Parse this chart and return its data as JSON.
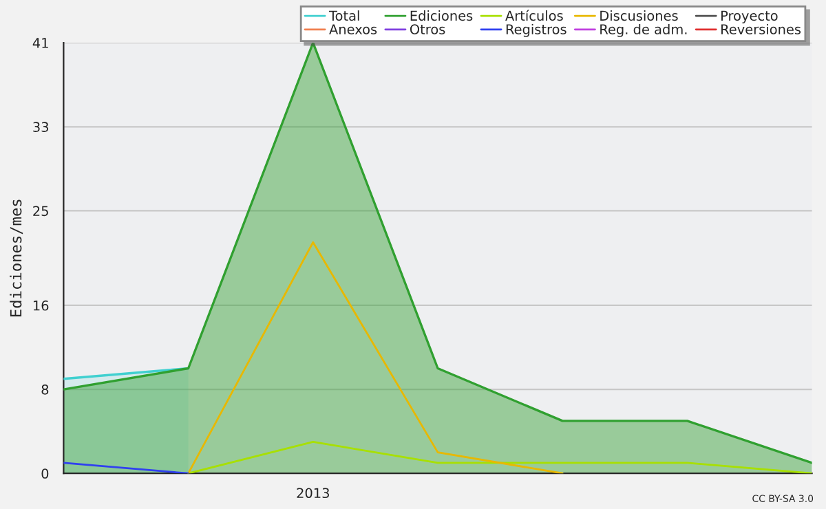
{
  "chart_data": {
    "type": "area",
    "ylabel": "Ediciones/mes",
    "categories": [
      null,
      null,
      "2013",
      null,
      null,
      null,
      null
    ],
    "ylim": [
      0,
      41
    ],
    "yticks": [
      0,
      8,
      16,
      25,
      33,
      41
    ],
    "grid": "y",
    "legend": "top right",
    "annotations": [
      {
        "text": "CC BY-SA 3.0"
      }
    ],
    "series": [
      {
        "name": "Total",
        "color": "#40d0d0",
        "values": [
          9,
          10,
          null,
          null,
          null,
          null,
          null
        ]
      },
      {
        "name": "Ediciones",
        "color": "#30a030",
        "values": [
          8,
          10,
          41,
          10,
          5,
          5,
          1
        ]
      },
      {
        "name": "Artículos",
        "type": "line",
        "color": "#a8e000",
        "values": [
          null,
          0,
          3,
          1,
          1,
          1,
          0
        ]
      },
      {
        "name": "Discusiones",
        "type": "line",
        "color": "#e8b800",
        "values": [
          null,
          0,
          22,
          2,
          0,
          null,
          null
        ]
      },
      {
        "name": "Proyecto",
        "type": "line",
        "color": "#505050",
        "values": [
          null,
          null,
          null,
          null,
          null,
          null,
          null
        ]
      },
      {
        "name": "Anexos",
        "type": "line",
        "color": "#f08050",
        "values": [
          null,
          null,
          null,
          null,
          null,
          null,
          null
        ]
      },
      {
        "name": "Otros",
        "type": "line",
        "color": "#8040e0",
        "values": [
          null,
          null,
          null,
          null,
          null,
          null,
          null
        ]
      },
      {
        "name": "Registros",
        "type": "line",
        "color": "#3040f0",
        "values": [
          1,
          0,
          null,
          null,
          null,
          null,
          null
        ]
      },
      {
        "name": "Reg. de adm.",
        "type": "line",
        "color": "#c040e0",
        "values": [
          null,
          null,
          null,
          null,
          null,
          null,
          null
        ]
      },
      {
        "name": "Reversiones",
        "type": "line",
        "color": "#e03030",
        "values": [
          null,
          null,
          null,
          null,
          null,
          null,
          null
        ]
      }
    ]
  }
}
